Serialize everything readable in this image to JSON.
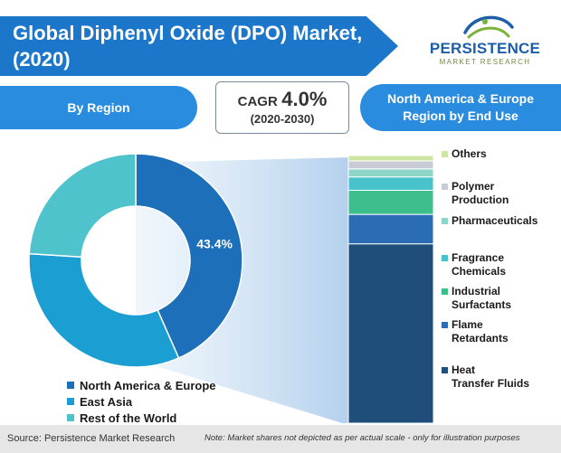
{
  "header": {
    "title": "Global Diphenyl Oxide (DPO) Market, (2020)",
    "logo_name": "PERSISTENCE",
    "logo_sub": "MARKET RESEARCH",
    "by_region_label": "By Region",
    "cagr_label": "CAGR",
    "cagr_value": "4.0%",
    "cagr_period": "(2020-2030)",
    "end_use_title": "North America & Europe Region by End Use"
  },
  "chart_data": [
    {
      "type": "pie",
      "style": "donut",
      "title": "By Region",
      "slices": [
        {
          "label": "North America & Europe",
          "value": 43.4,
          "color": "#1c6fb8"
        },
        {
          "label": "East Asia",
          "value": 32.6,
          "color": "#1b9fd2"
        },
        {
          "label": "Rest of the World",
          "value": 24.0,
          "color": "#4ec3cc"
        }
      ],
      "data_labels": [
        "43.4%"
      ],
      "legend_position": "bottom"
    },
    {
      "type": "bar",
      "style": "stacked-100",
      "title": "North America & Europe Region by End Use",
      "categories": [
        "North America & Europe"
      ],
      "series": [
        {
          "name": "Heat Transfer Fluids",
          "values": [
            67.0
          ],
          "color": "#1e4e79"
        },
        {
          "name": "Flame Retardants",
          "values": [
            11.0
          ],
          "color": "#2a6db5"
        },
        {
          "name": "Industrial Surfactants",
          "values": [
            9.0
          ],
          "color": "#3cbf8c"
        },
        {
          "name": "Fragrance Chemicals",
          "values": [
            5.0
          ],
          "color": "#48c3cc"
        },
        {
          "name": "Pharmaceuticals",
          "values": [
            3.0
          ],
          "color": "#8ed5c9"
        },
        {
          "name": "Polymer Production",
          "values": [
            3.0
          ],
          "color": "#c9ccd6"
        },
        {
          "name": "Others",
          "values": [
            2.0
          ],
          "color": "#cde6a1"
        }
      ],
      "legend_position": "right"
    }
  ],
  "footer": {
    "source": "Source: Persistence Market Research",
    "note": "Note: Market shares not depicted as per actual scale - only for illustration purposes"
  }
}
